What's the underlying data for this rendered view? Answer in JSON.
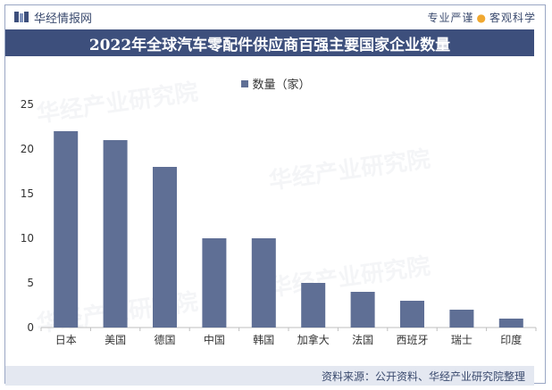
{
  "header": {
    "brand": "华经情报网",
    "slogan_left": "专业严谨",
    "slogan_right": "客观科学"
  },
  "title": "2022年全球汽车零配件供应商百强主要国家企业数量",
  "footer": {
    "source": "资料来源：公开资料、华经产业研究院整理"
  },
  "watermark": {
    "text": "华经产业研究院",
    "url": "www.huaon.com"
  },
  "colors": {
    "bar": "#5f6f95",
    "title_bg": "#3d4f7c",
    "footer_bg": "#e4e8f1"
  },
  "chart_data": {
    "type": "bar",
    "categories": [
      "日本",
      "美国",
      "德国",
      "中国",
      "韩国",
      "加拿大",
      "法国",
      "西班牙",
      "瑞士",
      "印度"
    ],
    "series": [
      {
        "name": "数量（家）",
        "values": [
          22,
          21,
          18,
          10,
          10,
          5,
          4,
          3,
          2,
          1
        ]
      }
    ],
    "ylim": [
      0,
      25
    ],
    "yticks": [
      0,
      5,
      10,
      15,
      20,
      25
    ],
    "grid": false,
    "legend": "top-center"
  }
}
